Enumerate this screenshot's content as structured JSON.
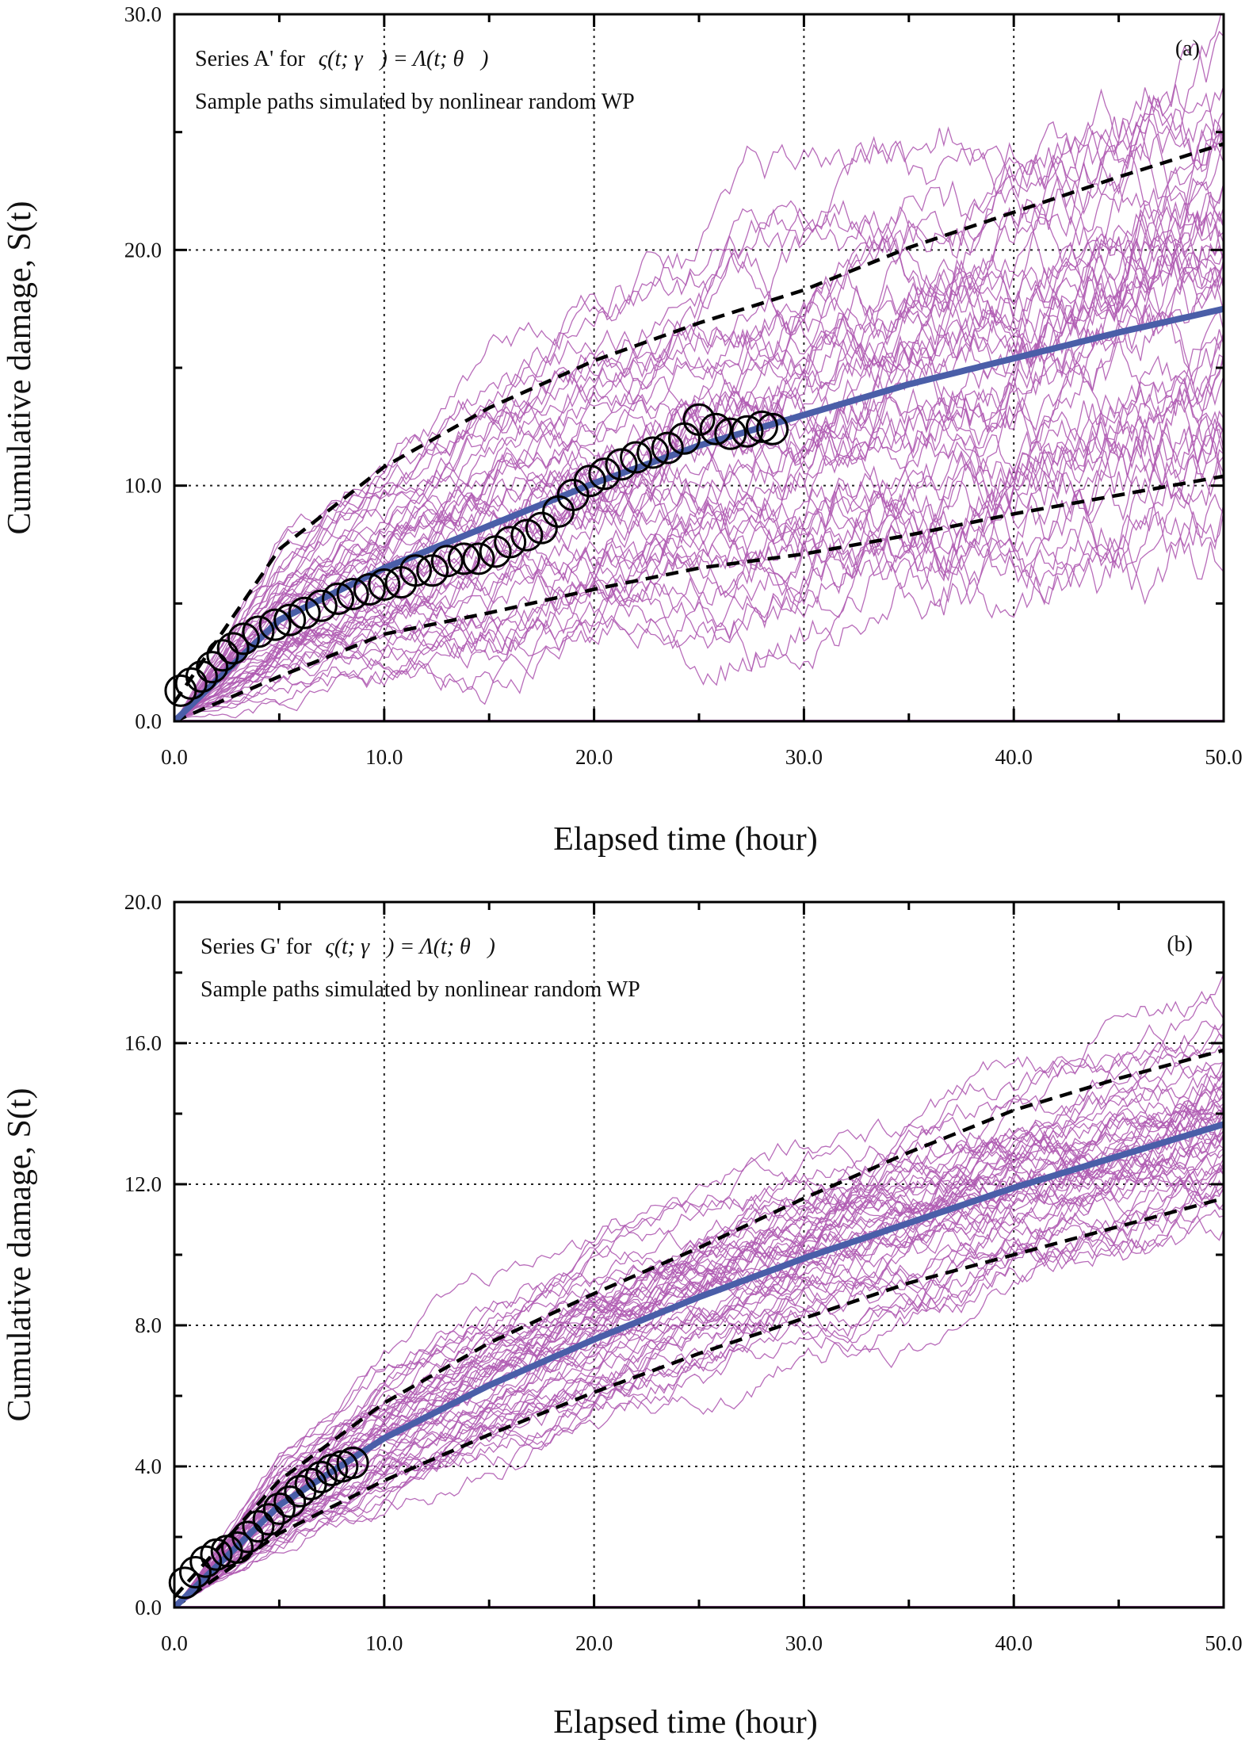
{
  "chart_data": [
    {
      "type": "line",
      "panel_label": "(a)",
      "annotation_line1_prefix": "Series A' for",
      "annotation_formula": "ς(t; γ⃗) = Λ(t; θ⃗)",
      "annotation_line2": "Sample paths simulated by nonlinear random WP",
      "xlabel": "Elapsed time (hour)",
      "ylabel": "Cumulative damage, S(t)",
      "xlim": [
        0,
        50
      ],
      "ylim": [
        0,
        30
      ],
      "x_ticks": [
        "0.0",
        "10.0",
        "20.0",
        "30.0",
        "40.0",
        "50.0"
      ],
      "y_ticks": [
        "0.0",
        "10.0",
        "20.0",
        "30.0"
      ],
      "grid": true,
      "colors": {
        "paths": "#b05cb3",
        "mean": "#4a5ea8",
        "bounds": "#000000",
        "observed": "#000000"
      },
      "mean_curve": {
        "x": [
          0,
          5,
          10,
          15,
          20,
          25,
          30,
          35,
          40,
          45,
          50
        ],
        "y": [
          0,
          4.3,
          6.5,
          8.3,
          10.1,
          11.7,
          13.0,
          14.3,
          15.4,
          16.5,
          17.5
        ]
      },
      "upper_bound": {
        "x": [
          0,
          5,
          10,
          15,
          20,
          25,
          30,
          35,
          40,
          45,
          50
        ],
        "y": [
          0.8,
          7.3,
          10.8,
          13.3,
          15.3,
          16.9,
          18.3,
          20.1,
          21.6,
          23.1,
          24.5
        ]
      },
      "lower_bound": {
        "x": [
          0,
          5,
          10,
          15,
          20,
          25,
          30,
          35,
          40,
          45,
          50
        ],
        "y": [
          0,
          1.9,
          3.7,
          4.6,
          5.6,
          6.5,
          7.1,
          7.9,
          8.8,
          9.6,
          10.4
        ]
      },
      "observed": {
        "x": [
          0.3,
          0.8,
          1.3,
          1.8,
          2.3,
          2.8,
          3.3,
          4.0,
          4.8,
          5.5,
          6.2,
          7.0,
          7.8,
          8.5,
          9.3,
          10.0,
          10.8,
          11.5,
          12.3,
          13.0,
          13.8,
          14.5,
          15.3,
          16.0,
          16.8,
          17.5,
          18.3,
          19.0,
          19.8,
          20.5,
          21.3,
          22.0,
          22.8,
          23.5,
          24.3,
          25.0,
          25.8,
          26.5,
          27.3,
          28.0,
          28.5
        ],
        "y": [
          1.3,
          1.6,
          1.9,
          2.3,
          2.8,
          3.1,
          3.5,
          3.8,
          4.1,
          4.3,
          4.6,
          4.9,
          5.2,
          5.4,
          5.6,
          5.8,
          5.9,
          6.4,
          6.4,
          6.8,
          6.9,
          6.9,
          7.2,
          7.6,
          7.9,
          8.2,
          8.9,
          9.6,
          10.2,
          10.5,
          10.9,
          11.2,
          11.4,
          11.6,
          12.0,
          12.8,
          12.4,
          12.2,
          12.3,
          12.5,
          12.4
        ]
      },
      "sample_paths_count": 50,
      "sample_paths_spread": [
        0,
        2.2,
        3.0,
        3.8,
        4.4,
        4.9,
        5.3,
        5.8,
        6.3,
        6.7,
        7.1
      ]
    },
    {
      "type": "line",
      "panel_label": "(b)",
      "annotation_line1_prefix": "Series G' for",
      "annotation_formula": "ς(t; γ⃗) = Λ(t; θ⃗)",
      "annotation_line2": "Sample paths simulated by nonlinear random WP",
      "xlabel": "Elapsed time (hour)",
      "ylabel": "Cumulative damage, S(t)",
      "xlim": [
        0,
        50
      ],
      "ylim": [
        0,
        20
      ],
      "x_ticks": [
        "0.0",
        "10.0",
        "20.0",
        "30.0",
        "40.0",
        "50.0"
      ],
      "y_ticks": [
        "0.0",
        "4.0",
        "8.0",
        "12.0",
        "16.0",
        "20.0"
      ],
      "grid": true,
      "colors": {
        "paths": "#b05cb3",
        "mean": "#4a5ea8",
        "bounds": "#000000",
        "observed": "#000000"
      },
      "mean_curve": {
        "x": [
          0,
          5,
          10,
          15,
          20,
          25,
          30,
          35,
          40,
          45,
          50
        ],
        "y": [
          0,
          2.9,
          4.8,
          6.3,
          7.6,
          8.8,
          9.9,
          10.9,
          11.9,
          12.8,
          13.7
        ]
      },
      "upper_bound": {
        "x": [
          0,
          5,
          10,
          15,
          20,
          25,
          30,
          35,
          40,
          45,
          50
        ],
        "y": [
          0.3,
          3.6,
          5.8,
          7.5,
          8.9,
          10.2,
          11.6,
          12.9,
          14.1,
          15.0,
          15.8
        ]
      },
      "lower_bound": {
        "x": [
          0,
          5,
          10,
          15,
          20,
          25,
          30,
          35,
          40,
          45,
          50
        ],
        "y": [
          0,
          2.1,
          3.6,
          4.9,
          6.1,
          7.2,
          8.2,
          9.2,
          10.0,
          10.8,
          11.6
        ]
      },
      "observed": {
        "x": [
          0.5,
          1.0,
          1.5,
          2.0,
          2.5,
          3.0,
          3.5,
          4.0,
          4.5,
          5.0,
          5.5,
          6.0,
          6.5,
          7.0,
          7.5,
          8.0,
          8.5
        ],
        "y": [
          0.7,
          1.0,
          1.3,
          1.5,
          1.6,
          1.7,
          2.0,
          2.3,
          2.5,
          2.8,
          3.0,
          3.3,
          3.5,
          3.7,
          3.9,
          4.0,
          4.1
        ]
      },
      "sample_paths_count": 50,
      "sample_paths_spread": [
        0,
        1.0,
        1.4,
        1.6,
        1.7,
        1.8,
        1.9,
        2.0,
        2.1,
        2.2,
        2.3
      ]
    }
  ]
}
